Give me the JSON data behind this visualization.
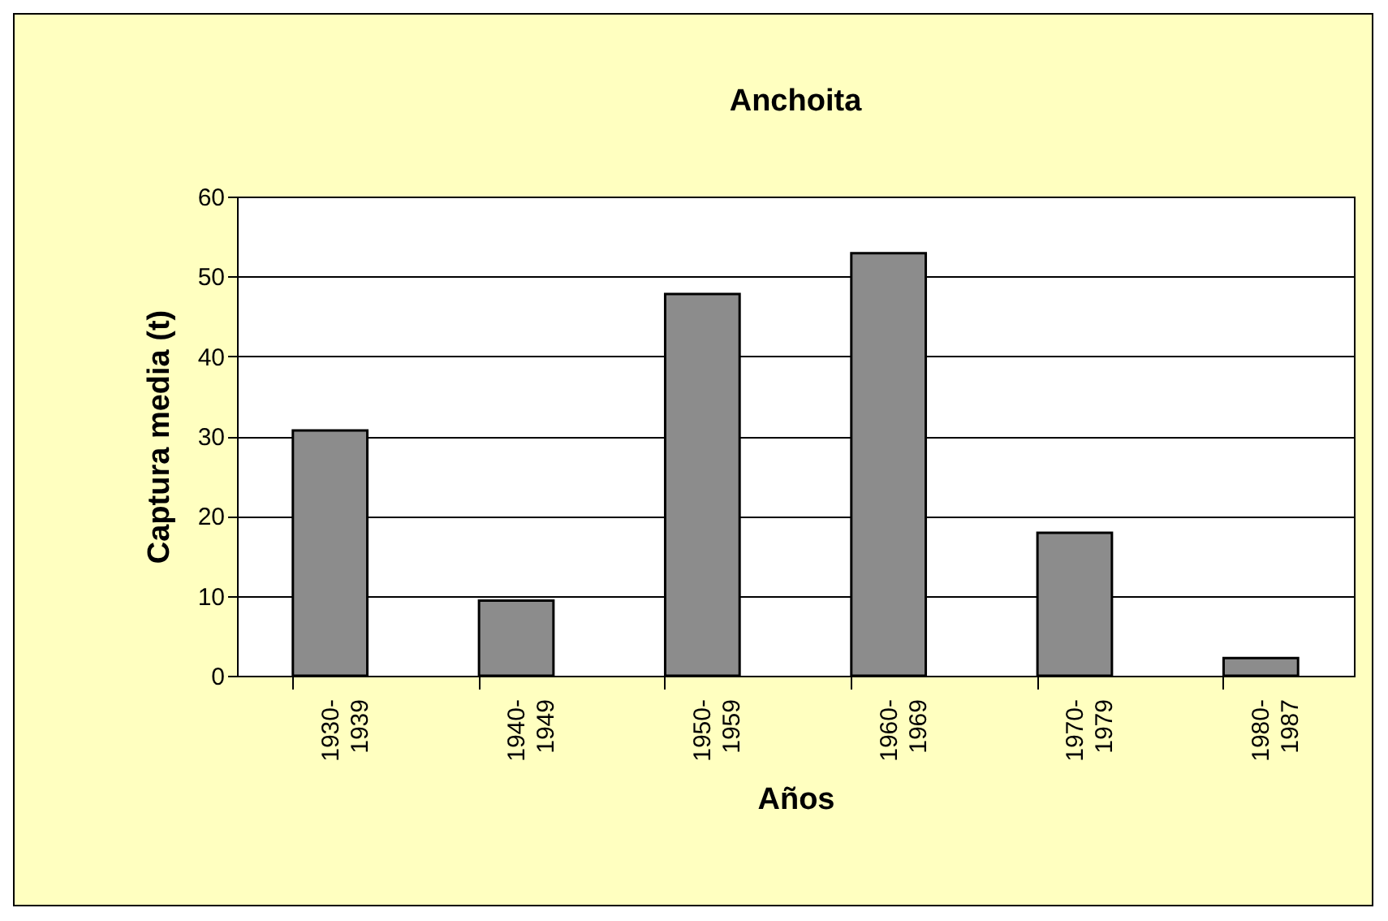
{
  "chart_data": {
    "type": "bar",
    "title": "Anchoita",
    "xlabel": "Años",
    "ylabel": "Captura media (t)",
    "categories": [
      "1930- 1939",
      "1940- 1949",
      "1950- 1959",
      "1960- 1969",
      "1970- 1979",
      "1980- 1987"
    ],
    "values": [
      30.7,
      9.4,
      47.8,
      52.9,
      17.9,
      2.2
    ],
    "color": "#8c8c8c",
    "ylim": [
      0,
      60
    ],
    "yticks": [
      0,
      10,
      20,
      30,
      40,
      50,
      60
    ],
    "grid": "y"
  }
}
